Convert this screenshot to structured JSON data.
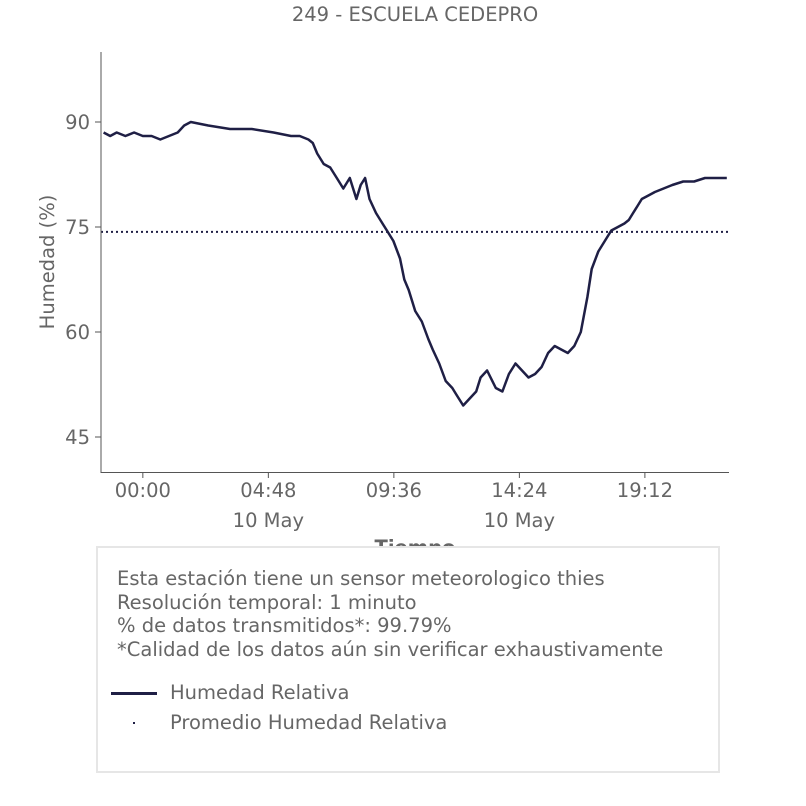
{
  "chart_data": {
    "type": "line",
    "title": "249 - ESCUELA CEDEPRO",
    "xlabel": "Tiempo",
    "ylabel": "Humedad (%)",
    "x_ticks": [
      {
        "time": "00:00",
        "date": "",
        "minutes": 0
      },
      {
        "time": "04:48",
        "date": "10 May",
        "minutes": 288
      },
      {
        "time": "09:36",
        "date": "",
        "minutes": 576
      },
      {
        "time": "14:24",
        "date": "10 May",
        "minutes": 864
      },
      {
        "time": "19:12",
        "date": "",
        "minutes": 1152
      }
    ],
    "y_ticks": [
      45,
      60,
      75,
      90
    ],
    "xlim": [
      -96,
      1345
    ],
    "ylim": [
      40,
      100
    ],
    "grid": false,
    "series": [
      {
        "name": "Humedad Relativa",
        "style": "solid",
        "color": "#1f1f45",
        "x": [
          -90,
          -75,
          -60,
          -40,
          -20,
          0,
          20,
          40,
          60,
          80,
          95,
          110,
          150,
          200,
          250,
          300,
          340,
          360,
          380,
          390,
          400,
          415,
          430,
          445,
          460,
          475,
          490,
          500,
          510,
          520,
          535,
          550,
          560,
          575,
          590,
          600,
          610,
          625,
          640,
          655,
          665,
          680,
          695,
          710,
          720,
          735,
          750,
          765,
          775,
          790,
          810,
          825,
          840,
          855,
          870,
          885,
          900,
          915,
          930,
          945,
          960,
          975,
          990,
          1005,
          1020,
          1030,
          1045,
          1060,
          1075,
          1090,
          1105,
          1115,
          1125,
          1135,
          1145,
          1160,
          1175,
          1195,
          1215,
          1240,
          1265,
          1290,
          1315,
          1340
        ],
        "y": [
          88.5,
          88,
          88.5,
          88,
          88.5,
          88,
          88,
          87.5,
          88,
          88.5,
          89.5,
          90,
          89.5,
          89,
          89,
          88.5,
          88,
          88,
          87.5,
          87,
          85.5,
          84,
          83.5,
          82,
          80.5,
          82,
          79,
          81,
          82,
          79,
          77,
          75.5,
          74.5,
          73,
          70.5,
          67.5,
          66,
          63,
          61.5,
          59,
          57.5,
          55.5,
          53,
          52,
          51,
          49.5,
          50.5,
          51.5,
          53.5,
          54.5,
          52,
          51.5,
          54,
          55.5,
          54.5,
          53.5,
          54,
          55,
          57,
          58,
          57.5,
          57,
          58,
          60,
          65,
          69,
          71.5,
          73,
          74.5,
          75,
          75.5,
          76,
          77,
          78,
          79,
          79.5,
          80,
          80.5,
          81,
          81.5,
          81.5,
          82,
          82,
          82
        ]
      },
      {
        "name": "Promedio Humedad Relativa",
        "style": "dotted",
        "color": "#1f1f45",
        "x": [
          -96,
          1345
        ],
        "y": [
          74.3,
          74.3
        ]
      }
    ]
  },
  "info": {
    "lines": [
      "Esta estación tiene un sensor meteorologico thies",
      "Resolución temporal: 1 minuto",
      "% de datos transmitidos*: 99.79%",
      "*Calidad de los datos aún sin verificar exhaustivamente"
    ],
    "legend": [
      {
        "label": "Humedad Relativa",
        "style": "solid"
      },
      {
        "label": "Promedio Humedad Relativa",
        "style": "dotted"
      }
    ]
  }
}
